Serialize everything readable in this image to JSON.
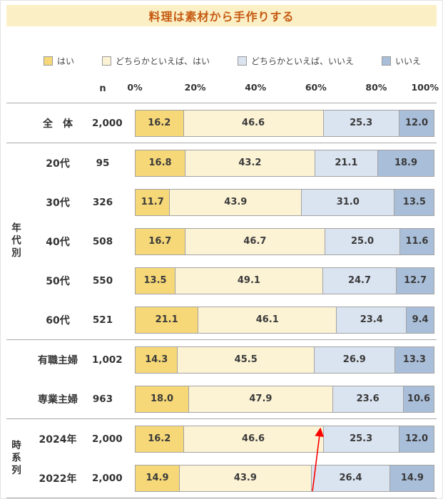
{
  "title": "料理は素材から手作りする",
  "banner": {
    "bg_color": "#FBEFC5",
    "text_color": "#C55A11"
  },
  "axis": {
    "n_header": "n",
    "ticks": [
      "0%",
      "20%",
      "40%",
      "60%",
      "80%",
      "100%"
    ]
  },
  "legend": [
    {
      "label": "はい",
      "color": "#F6D878"
    },
    {
      "label": "どちらかといえば、はい",
      "color": "#FCF3D5"
    },
    {
      "label": "どちらかといえば、いいえ",
      "color": "#DAE3F0"
    },
    {
      "label": "いいえ",
      "color": "#A9BED9"
    }
  ],
  "annotation": {
    "type": "red-arrow",
    "color": "#FF0000"
  },
  "chart_data": {
    "type": "bar",
    "stacked": true,
    "orientation": "horizontal",
    "title": "料理は素材から手作りする",
    "xlim": [
      0,
      100
    ],
    "series_names": [
      "はい",
      "どちらかといえば、はい",
      "どちらかといえば、いいえ",
      "いいえ"
    ],
    "groups": [
      {
        "group": "",
        "rows": [
          {
            "label": "全　体",
            "n": "2,000",
            "values": [
              16.2,
              46.6,
              25.3,
              12.0
            ]
          }
        ]
      },
      {
        "group": "年代別",
        "rows": [
          {
            "label": "20代",
            "n": "95",
            "values": [
              16.8,
              43.2,
              21.1,
              18.9
            ]
          },
          {
            "label": "30代",
            "n": "326",
            "values": [
              11.7,
              43.9,
              31.0,
              13.5
            ]
          },
          {
            "label": "40代",
            "n": "508",
            "values": [
              16.7,
              46.7,
              25.0,
              11.6
            ]
          },
          {
            "label": "50代",
            "n": "550",
            "values": [
              13.5,
              49.1,
              24.7,
              12.7
            ]
          },
          {
            "label": "60代",
            "n": "521",
            "values": [
              21.1,
              46.1,
              23.4,
              9.4
            ]
          }
        ]
      },
      {
        "group": "",
        "rows": [
          {
            "label": "有職主婦",
            "n": "1,002",
            "values": [
              14.3,
              45.5,
              26.9,
              13.3
            ]
          },
          {
            "label": "専業主婦",
            "n": "963",
            "values": [
              18.0,
              47.9,
              23.6,
              10.6
            ]
          }
        ]
      },
      {
        "group": "時系列",
        "rows": [
          {
            "label": "2024年",
            "n": "2,000",
            "values": [
              16.2,
              46.6,
              25.3,
              12.0
            ]
          },
          {
            "label": "2022年",
            "n": "2,000",
            "values": [
              14.9,
              43.9,
              26.4,
              14.9
            ]
          }
        ]
      }
    ]
  }
}
